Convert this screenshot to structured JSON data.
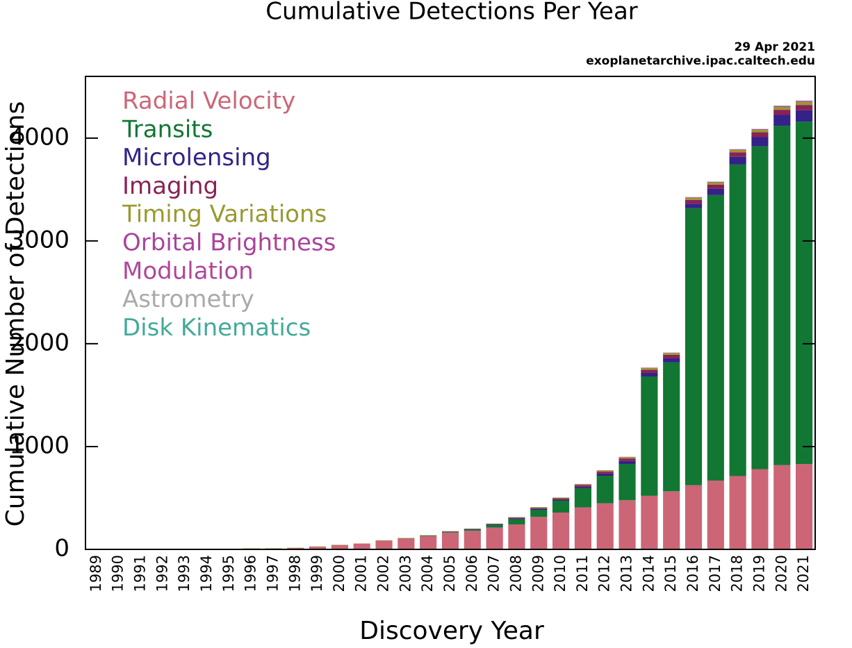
{
  "chart_data": {
    "type": "stacked_bar",
    "title": "Cumulative Detections Per Year",
    "annotations": [
      "29 Apr 2021",
      "exoplanetarchive.ipac.caltech.edu"
    ],
    "xlabel": "Discovery Year",
    "ylabel": "Cumulative Number of Detections",
    "categories": [
      "1989",
      "1990",
      "1991",
      "1992",
      "1993",
      "1994",
      "1995",
      "1996",
      "1997",
      "1998",
      "1999",
      "2000",
      "2001",
      "2002",
      "2003",
      "2004",
      "2005",
      "2006",
      "2007",
      "2008",
      "2009",
      "2010",
      "2011",
      "2012",
      "2013",
      "2014",
      "2015",
      "2016",
      "2017",
      "2018",
      "2019",
      "2020",
      "2021"
    ],
    "ylim": [
      0,
      4600
    ],
    "yticks": [
      0,
      1000,
      2000,
      3000,
      4000
    ],
    "legend": "upper left",
    "series": [
      {
        "name": "Radial Velocity",
        "color": "#cc6677",
        "values": [
          1,
          1,
          1,
          1,
          1,
          1,
          2,
          7,
          8,
          13,
          26,
          42,
          55,
          85,
          106,
          128,
          163,
          181,
          212,
          243,
          316,
          358,
          408,
          448,
          478,
          521,
          565,
          625,
          669,
          713,
          780,
          820,
          830
        ]
      },
      {
        "name": "Transits",
        "color": "#117733",
        "values": [
          0,
          0,
          0,
          0,
          0,
          0,
          0,
          0,
          0,
          0,
          0,
          0,
          0,
          1,
          2,
          5,
          7,
          12,
          25,
          50,
          69,
          115,
          187,
          268,
          353,
          1161,
          1253,
          2693,
          2777,
          3030,
          3140,
          3300,
          3330
        ]
      },
      {
        "name": "Microlensing",
        "color": "#332288",
        "values": [
          0,
          0,
          0,
          0,
          0,
          0,
          0,
          0,
          0,
          0,
          0,
          0,
          0,
          0,
          0,
          1,
          3,
          4,
          6,
          8,
          9,
          11,
          14,
          21,
          28,
          34,
          40,
          44,
          62,
          75,
          89,
          105,
          110
        ]
      },
      {
        "name": "Imaging",
        "color": "#882255",
        "values": [
          0,
          0,
          0,
          0,
          0,
          0,
          0,
          0,
          0,
          0,
          0,
          0,
          0,
          0,
          0,
          1,
          2,
          3,
          4,
          8,
          10,
          12,
          16,
          19,
          25,
          31,
          34,
          37,
          40,
          44,
          47,
          50,
          52
        ]
      },
      {
        "name": "Timing Variations",
        "color": "#999933",
        "values": [
          0,
          0,
          0,
          2,
          3,
          3,
          3,
          3,
          3,
          3,
          3,
          3,
          3,
          3,
          3,
          3,
          3,
          3,
          4,
          5,
          7,
          8,
          9,
          11,
          13,
          16,
          18,
          21,
          22,
          23,
          24,
          28,
          30
        ]
      },
      {
        "name": "Orbital Brightness",
        "color": "#aa4499",
        "values": [
          0,
          0,
          0,
          0,
          0,
          0,
          0,
          0,
          0,
          0,
          0,
          0,
          0,
          0,
          0,
          0,
          0,
          0,
          0,
          0,
          0,
          0,
          1,
          2,
          2,
          3,
          3,
          4,
          4,
          5,
          6,
          9,
          9
        ]
      },
      {
        "name": "Modulation",
        "color": "#b0479c",
        "values": [
          0,
          0,
          0,
          0,
          0,
          0,
          0,
          0,
          0,
          0,
          0,
          0,
          0,
          0,
          0,
          0,
          0,
          0,
          0,
          0,
          0,
          0,
          1,
          1,
          1,
          1,
          1,
          2,
          2,
          2,
          2,
          2,
          2
        ]
      },
      {
        "name": "Astrometry",
        "color": "#aaaaaa",
        "values": [
          0,
          0,
          0,
          0,
          0,
          0,
          0,
          0,
          0,
          0,
          0,
          0,
          0,
          0,
          0,
          0,
          0,
          0,
          0,
          0,
          0,
          0,
          0,
          0,
          1,
          1,
          1,
          1,
          1,
          1,
          1,
          1,
          1
        ]
      },
      {
        "name": "Disk Kinematics",
        "color": "#44aa99",
        "values": [
          0,
          0,
          0,
          0,
          0,
          0,
          0,
          0,
          0,
          0,
          0,
          0,
          0,
          0,
          0,
          0,
          0,
          0,
          0,
          0,
          0,
          0,
          0,
          0,
          0,
          0,
          0,
          0,
          0,
          0,
          1,
          1,
          1
        ]
      }
    ]
  }
}
